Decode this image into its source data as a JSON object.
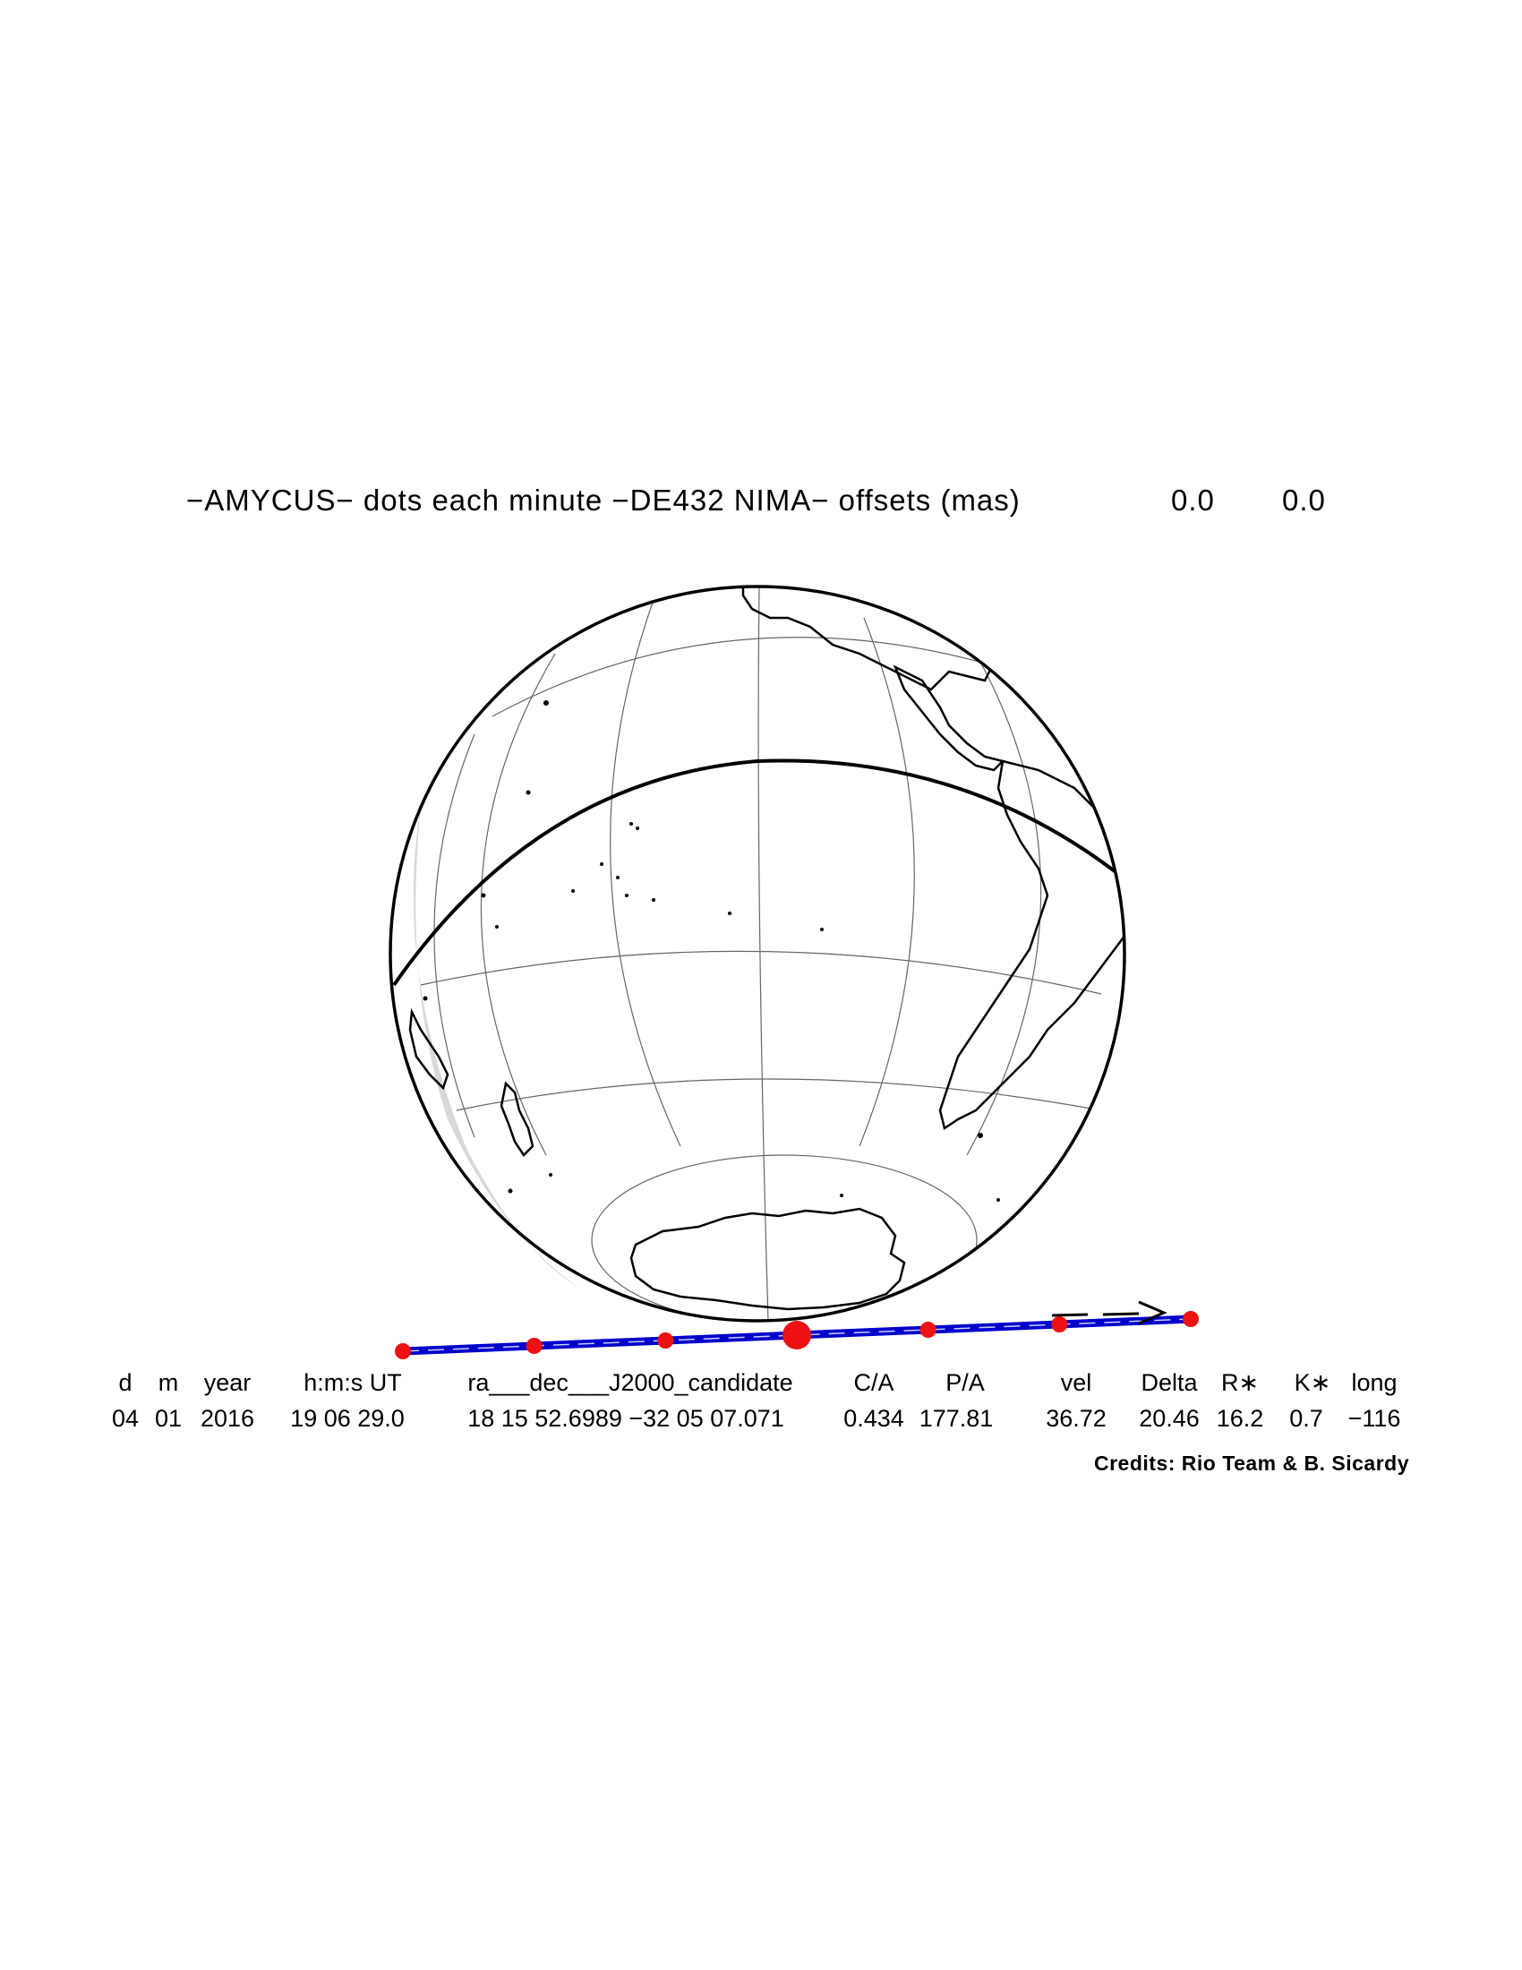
{
  "title": {
    "text": "−AMYCUS− dots each minute −DE432 NIMA− offsets (mas)",
    "offset_ra": "0.0",
    "offset_dec": "0.0"
  },
  "table": {
    "headers": [
      "d",
      "m",
      "year",
      "h:m:s UT",
      "ra___dec___J2000_candidate",
      "C/A",
      "P/A",
      "vel",
      "Delta",
      "R∗",
      "K∗",
      "long"
    ],
    "values": [
      "04",
      "01",
      "2016",
      "19 06 29.0",
      "18 15 52.6989 −32 05 07.071",
      "0.434",
      "177.81",
      "36.72",
      "20.46",
      "16.2",
      "0.7",
      "−116"
    ]
  },
  "credits": "Credits: Rio Team & B. Sicardy",
  "colors": {
    "shadow_path": "#0000cc",
    "dots": "#ee1111",
    "globe": "#000000",
    "grid": "#555555",
    "night_shade": "#d0d0d0"
  },
  "shadow_path": {
    "dots_count": 7,
    "central_dot_index": 3,
    "direction": "east"
  }
}
